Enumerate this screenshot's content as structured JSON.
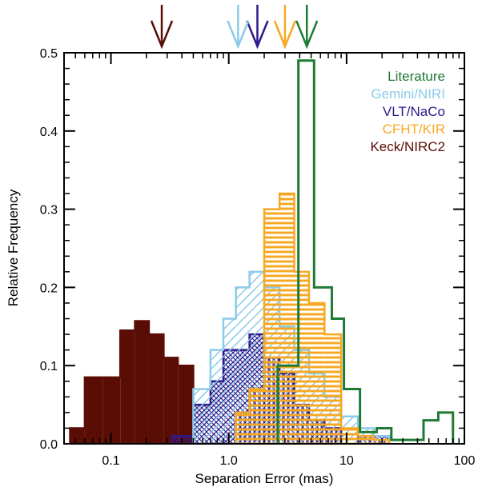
{
  "chart_data": {
    "type": "histogram",
    "xlabel": "Separation Error (mas)",
    "ylabel": "Relative Frequency",
    "xscale": "log",
    "xlim": [
      0.04,
      100
    ],
    "ylim": [
      0,
      0.5
    ],
    "x_ticks": [
      {
        "value": 0.1,
        "label": "0.1"
      },
      {
        "value": 1,
        "label": "1.0"
      },
      {
        "value": 10,
        "label": "10"
      },
      {
        "value": 100,
        "label": "100"
      }
    ],
    "y_ticks": [
      {
        "value": 0,
        "label": "0.0"
      },
      {
        "value": 0.1,
        "label": "0.1"
      },
      {
        "value": 0.2,
        "label": "0.2"
      },
      {
        "value": 0.3,
        "label": "0.3"
      },
      {
        "value": 0.4,
        "label": "0.4"
      },
      {
        "value": 0.5,
        "label": "0.5"
      }
    ],
    "legend_position": "top-right",
    "series": [
      {
        "name": "Keck/NIRC2",
        "color": "#5a0d05",
        "fill": "solid",
        "median_arrow": 0.27,
        "bin_edges": [
          0.045,
          0.06,
          0.085,
          0.12,
          0.16,
          0.21,
          0.28,
          0.37,
          0.5,
          0.7
        ],
        "values": [
          0.02,
          0.085,
          0.085,
          0.145,
          0.157,
          0.14,
          0.11,
          0.1,
          0.0
        ]
      },
      {
        "name": "VLT/NaCo",
        "color": "#2e1a8a",
        "fill": "crosshatch",
        "median_arrow": 1.75,
        "bin_edges": [
          0.33,
          0.5,
          0.7,
          0.9,
          1.15,
          1.5,
          2.0,
          2.7,
          3.6,
          4.8,
          6.5,
          9.0,
          12.5,
          17.0,
          23.0
        ],
        "values": [
          0.01,
          0.05,
          0.08,
          0.12,
          0.12,
          0.14,
          0.11,
          0.09,
          0.05,
          0.03,
          0.02,
          0.0,
          0.01,
          0.01
        ]
      },
      {
        "name": "Gemini/NIRI",
        "color": "#8ccbe8",
        "fill": "diagonal",
        "median_arrow": 1.2,
        "bin_edges": [
          0.5,
          0.7,
          0.9,
          1.15,
          1.5,
          2.0,
          2.7,
          3.6,
          4.8,
          6.5,
          9.0,
          12.5,
          17.0,
          23.0
        ],
        "values": [
          0.07,
          0.12,
          0.16,
          0.2,
          0.22,
          0.2,
          0.15,
          0.12,
          0.09,
          0.06,
          0.035,
          0.02,
          0.01
        ]
      },
      {
        "name": "CFHT/KIR",
        "color": "#f7a823",
        "fill": "horizontal",
        "median_arrow": 3.0,
        "bin_edges": [
          1.15,
          1.5,
          2.0,
          2.7,
          3.6,
          4.8,
          6.5,
          9.0,
          12.5,
          17.0,
          23.0
        ],
        "values": [
          0.04,
          0.07,
          0.3,
          0.32,
          0.22,
          0.18,
          0.14,
          0.02,
          0.01,
          0.005
        ]
      },
      {
        "name": "Literature",
        "color": "#1e7a35",
        "fill": "none",
        "median_arrow": 4.6,
        "bin_edges": [
          2.6,
          3.9,
          5.3,
          7.5,
          9.5,
          13.0,
          18.0,
          24.0,
          34.0,
          45.0,
          60.0,
          80.0
        ],
        "values": [
          0.1,
          0.49,
          0.2,
          0.16,
          0.07,
          0.015,
          0.02,
          0.005,
          0.005,
          0.03,
          0.04
        ]
      }
    ],
    "legend_order": [
      "Literature",
      "Gemini/NIRI",
      "VLT/NaCo",
      "CFHT/KIR",
      "Keck/NIRC2"
    ]
  }
}
